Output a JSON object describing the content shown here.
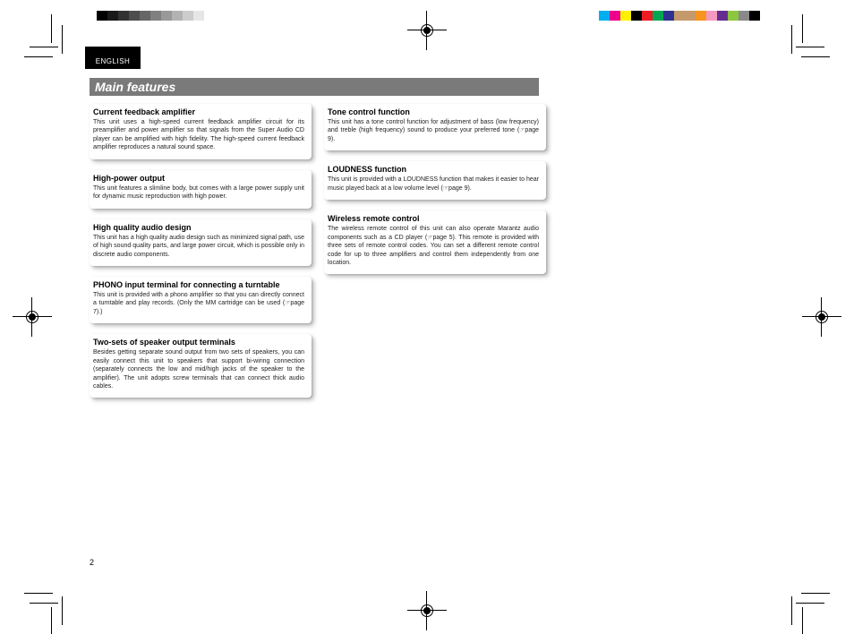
{
  "language_tab": "ENGLISH",
  "section_title": "Main features",
  "page_number": "2",
  "grayscale_colors": [
    "#000000",
    "#1a1a1a",
    "#333333",
    "#4d4d4d",
    "#666666",
    "#808080",
    "#999999",
    "#b3b3b3",
    "#cccccc",
    "#e6e6e6",
    "#ffffff"
  ],
  "color_bar_colors": [
    "#00aeef",
    "#ec008c",
    "#fff200",
    "#000000",
    "#ed1c24",
    "#00a651",
    "#2e3192",
    "#c49a6c",
    "#c49a6c",
    "#f7941d",
    "#f49ac1",
    "#662d91",
    "#8dc63f",
    "#898989",
    "#000000"
  ],
  "left_column": [
    {
      "title": "Current feedback amplifier",
      "body": "This unit uses a high-speed current feedback amplifier circuit for its preamplifier and power amplifier so that signals from the Super Audio CD player can be amplified with high fidelity. The high-speed current feedback amplifier reproduces a natural sound space."
    },
    {
      "title": "High-power output",
      "body": "This unit features a slimline body, but comes with a large power supply unit for dynamic music reproduction with high power."
    },
    {
      "title": "High quality audio design",
      "body": "This unit has a high quality audio design such as minimized signal path, use of high sound quality parts, and large power circuit, which is possible only in discrete audio components."
    },
    {
      "title": "PHONO input terminal for connecting a turntable",
      "body": "This unit is provided with a phono amplifier so that you can directly connect a turntable and play records. (Only the MM cartridge can be used (☞page 7).)"
    },
    {
      "title": "Two-sets of speaker output terminals",
      "body": "Besides getting separate sound output from two sets of speakers, you can easily connect this unit to speakers that support bi-wiring connection (separately connects the low and mid/high jacks of the speaker to the amplifier). The unit adopts screw terminals that can connect thick audio cables."
    }
  ],
  "right_column": [
    {
      "title": "Tone control function",
      "body": "This unit has a tone control function for adjustment of bass (low frequency) and treble (high frequency) sound to produce your preferred tone (☞page 9)."
    },
    {
      "title": "LOUDNESS function",
      "body": "This unit is provided with a LOUDNESS function that makes it easier to hear music played back at a low volume level (☞page 9)."
    },
    {
      "title": "Wireless remote control",
      "body": "The wireless remote control of this unit can also operate Marantz audio components such as a CD player (☞page 5).\nThis remote is provided with three sets of remote control codes. You can set a different remote control code for up to three amplifiers and control them independently from one location."
    }
  ]
}
